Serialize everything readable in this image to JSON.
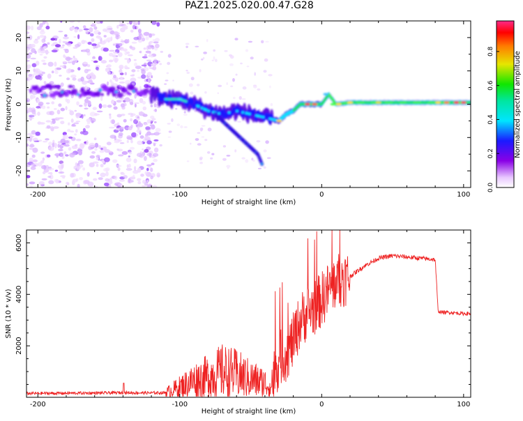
{
  "figure": {
    "title": "PAZ1.2025.020.00.47.G28"
  },
  "chart_data": [
    {
      "type": "heatmap",
      "xlabel": "Height of straight line (km)",
      "ylabel": "Frequency (Hz)",
      "xlim": [
        -208,
        105
      ],
      "ylim": [
        -25,
        25
      ],
      "xticks": [
        -200,
        -100,
        0,
        100
      ],
      "yticks": [
        -20,
        -10,
        0,
        10,
        20
      ],
      "colorbar": {
        "label": "Normalized spectral amplitude",
        "range": [
          0.0,
          0.98
        ],
        "ticks": [
          "0.0",
          "0.2",
          "0.4",
          "0.6",
          "0.8"
        ],
        "colormap": "rainbow (white-violet-blue-cyan-green-yellow-red-magenta)"
      },
      "ridge": {
        "description": "dominant frequency trace",
        "x": [
          -120,
          -110,
          -100,
          -90,
          -80,
          -70,
          -60,
          -50,
          -40,
          -30,
          -25,
          -20,
          -15,
          -10,
          -5,
          0,
          5,
          10,
          20,
          40,
          60,
          80,
          100,
          105
        ],
        "y": [
          3,
          1.5,
          1.5,
          0,
          -2,
          -3,
          -2,
          -3,
          -4,
          -5,
          -3,
          -2,
          0,
          0,
          0,
          0,
          3,
          0,
          0.5,
          0.5,
          0.5,
          0.5,
          0.5,
          0.5
        ]
      },
      "branch": {
        "description": "secondary descending trace",
        "x": [
          -75,
          -65,
          -55,
          -45,
          -42
        ],
        "y": [
          -3,
          -7,
          -11,
          -15,
          -18
        ]
      }
    },
    {
      "type": "line",
      "xlabel": "Height of straight line (km)",
      "ylabel": "SNR (10 * v/v)",
      "xlim": [
        -208,
        105
      ],
      "ylim": [
        0,
        6500
      ],
      "xticks": [
        -200,
        -100,
        0,
        100
      ],
      "yticks": [
        2000,
        4000,
        6000
      ],
      "series": [
        {
          "color": "#ee2222",
          "x": [
            -208,
            -180,
            -150,
            -140,
            -120,
            -110,
            -100,
            -90,
            -80,
            -70,
            -60,
            -50,
            -40,
            -36,
            -30,
            -25,
            -20,
            -15,
            -10,
            -5,
            0,
            5,
            10,
            15,
            20,
            30,
            40,
            50,
            60,
            70,
            80,
            82,
            85,
            90,
            100,
            105
          ],
          "y": [
            150,
            160,
            170,
            180,
            170,
            180,
            400,
            650,
            800,
            1000,
            900,
            700,
            550,
            400,
            1500,
            1700,
            2200,
            3000,
            3300,
            3500,
            3800,
            4200,
            4500,
            4600,
            4700,
            5100,
            5400,
            5500,
            5450,
            5400,
            5350,
            3350,
            3300,
            3300,
            3250,
            3250
          ]
        }
      ]
    }
  ]
}
